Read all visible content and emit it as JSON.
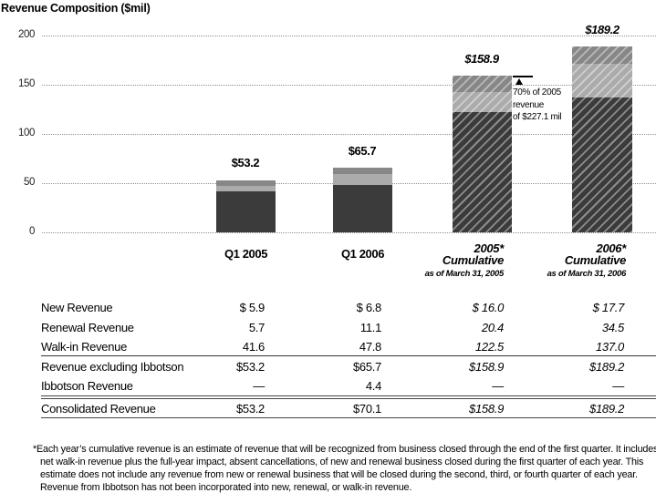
{
  "title": "Revenue Composition ($mil)",
  "chart_data": {
    "type": "bar",
    "stacked": true,
    "title": "Revenue Composition ($mil)",
    "categories": [
      "Q1 2005",
      "Q1 2006",
      "2005* Cumulative as of March 31, 2005",
      "2006* Cumulative as of March 31, 2006"
    ],
    "series": [
      {
        "name": "New Revenue",
        "values": [
          5.9,
          6.8,
          16.0,
          17.7
        ],
        "color": "#878787"
      },
      {
        "name": "Renewal Revenue",
        "values": [
          5.7,
          11.1,
          20.4,
          34.5
        ],
        "color": "#ababab"
      },
      {
        "name": "Walk-in Revenue",
        "values": [
          41.6,
          47.8,
          122.5,
          137.0
        ],
        "color": "#3b3b3b"
      }
    ],
    "totals": [
      "$53.2",
      "$65.7",
      "$158.9",
      "$189.2"
    ],
    "hatched": [
      false,
      false,
      true,
      true
    ],
    "ylim": [
      0,
      200
    ],
    "yticks": [
      "200",
      "150",
      "100",
      "50",
      "0"
    ],
    "grid": "dotted horizontal",
    "legend": "none",
    "annotation": "70% of 2005 revenue of $227.1 mil"
  },
  "annotation": {
    "line1": "70% of 2005",
    "line2": "revenue",
    "line3": "of $227.1 mil"
  },
  "xaxis": {
    "cat1": "Q1 2005",
    "cat2": "Q1 2006",
    "cat3_year": "2005*",
    "cat3_label": "Cumulative",
    "cat3_sub": "as of March 31, 2005",
    "cat4_year": "2006*",
    "cat4_label": "Cumulative",
    "cat4_sub": "as of March 31, 2006"
  },
  "table": {
    "rows": [
      {
        "label": "New Revenue",
        "values": [
          "$ 5.9",
          "$ 6.8",
          "$ 16.0",
          "$ 17.7"
        ]
      },
      {
        "label": "Renewal Revenue",
        "values": [
          "5.7",
          "11.1",
          "20.4",
          "34.5"
        ]
      },
      {
        "label": "Walk-in Revenue",
        "values": [
          "41.6",
          "47.8",
          "122.5",
          "137.0"
        ]
      },
      {
        "label": "Revenue excluding Ibbotson",
        "values": [
          "$53.2",
          "$65.7",
          "$158.9",
          "$189.2"
        ]
      },
      {
        "label": "Ibbotson Revenue",
        "values": [
          "—",
          "4.4",
          "—",
          "—"
        ]
      },
      {
        "label": "Consolidated Revenue",
        "values": [
          "$53.2",
          "$70.1",
          "$158.9",
          "$189.2"
        ]
      }
    ]
  },
  "footnote": {
    "marker": "*",
    "text": "Each year’s cumulative revenue is an estimate of revenue that will be recognized from business closed through the end of the first quarter. It includes net walk-in revenue plus the full-year impact, absent cancellations, of new and renewal business closed during the first quarter of each year. This estimate does not include any revenue from new or renewal business that will be closed during the second, third, or fourth quarter of each year. Revenue from Ibbotson has not been incorporated into new, renewal, or walk-in revenue."
  }
}
